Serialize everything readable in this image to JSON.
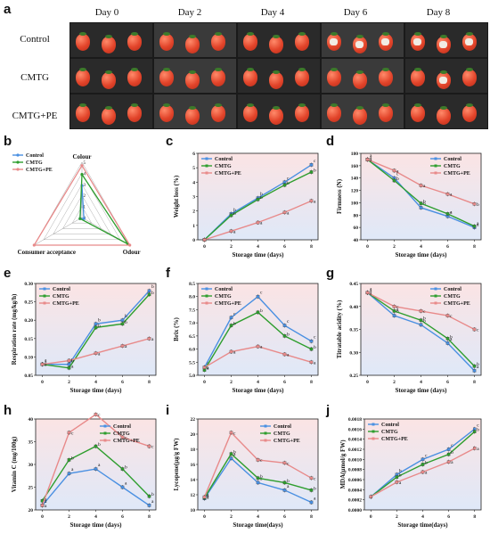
{
  "figure": {
    "panel_letters": [
      "a",
      "b",
      "c",
      "d",
      "e",
      "f",
      "g",
      "h",
      "i",
      "j"
    ]
  },
  "photo_panel": {
    "days": [
      "Day 0",
      "Day 2",
      "Day 4",
      "Day 6",
      "Day 8"
    ],
    "treatments": [
      "Control",
      "CMTG",
      "CMTG+PE"
    ],
    "tile_color": "#2c2c2c"
  },
  "colors": {
    "control": "#4a90e2",
    "cmtg": "#2e9e2e",
    "cmtgpe": "#e88a8a"
  },
  "chart_data": [
    {
      "id": "b",
      "type": "radar",
      "axes": [
        "Colour",
        "Odour",
        "Consumer acceptance"
      ],
      "rlim": [
        0,
        5
      ],
      "tick_labels": [
        "0",
        "1",
        "2",
        "3",
        "4",
        "5"
      ],
      "legend": [
        "Control",
        "CMTG",
        "CMTG+PE"
      ],
      "series": [
        {
          "name": "Control",
          "values": [
            2.9,
            0.2,
            0.2
          ],
          "color": "#4a90e2"
        },
        {
          "name": "CMTG",
          "values": [
            3.9,
            4.8,
            0.2
          ],
          "color": "#2e9e2e"
        },
        {
          "name": "CMTG+PE",
          "values": [
            4.7,
            5.0,
            5.0
          ],
          "color": "#e88a8a"
        }
      ]
    },
    {
      "id": "c",
      "type": "line",
      "xlabel": "Storage time (days)",
      "ylabel": "Weight loss (%)",
      "x": [
        0,
        2,
        4,
        6,
        8
      ],
      "xticks": [
        "0",
        "2",
        "4",
        "6",
        "8"
      ],
      "ylim": [
        0,
        6
      ],
      "yticks": [
        "0",
        "1",
        "2",
        "3",
        "4",
        "5",
        "6"
      ],
      "series": [
        {
          "name": "Control",
          "values": [
            0,
            1.8,
            2.9,
            4.0,
            5.2
          ],
          "color": "#4a90e2",
          "letters": [
            "",
            "b",
            "b",
            "c",
            "c"
          ]
        },
        {
          "name": "CMTG",
          "values": [
            0,
            1.7,
            2.8,
            3.8,
            4.7
          ],
          "color": "#2e9e2e",
          "letters": [
            "",
            "b",
            "b",
            "b",
            "b"
          ]
        },
        {
          "name": "CMTG+PE",
          "values": [
            0,
            0.6,
            1.2,
            1.9,
            2.7
          ],
          "color": "#e88a8a",
          "letters": [
            "",
            "a",
            "a",
            "a",
            "a"
          ]
        }
      ]
    },
    {
      "id": "d",
      "type": "line",
      "xlabel": "Storage time (days)",
      "ylabel": "Firmness (N)",
      "x": [
        0,
        2,
        4,
        6,
        8
      ],
      "xticks": [
        "0",
        "2",
        "4",
        "6",
        "8"
      ],
      "ylim": [
        40,
        180
      ],
      "yticks": [
        "40",
        "60",
        "80",
        "100",
        "120",
        "140",
        "160",
        "180"
      ],
      "series": [
        {
          "name": "Control",
          "values": [
            170,
            140,
            92,
            78,
            60
          ],
          "color": "#4a90e2",
          "letters": [
            "a",
            "c",
            "b",
            "a",
            "a"
          ]
        },
        {
          "name": "CMTG",
          "values": [
            170,
            136,
            99,
            82,
            62
          ],
          "color": "#2e9e2e",
          "letters": [
            "a",
            "b",
            "b",
            "a",
            "a"
          ]
        },
        {
          "name": "CMTG+PE",
          "values": [
            170,
            152,
            128,
            114,
            98
          ],
          "color": "#e88a8a",
          "letters": [
            "a",
            "a",
            "a",
            "a",
            "b"
          ]
        }
      ]
    },
    {
      "id": "e",
      "type": "line",
      "xlabel": "Storage time (days)",
      "ylabel": "Respiration rate (mg/kg/h)",
      "x": [
        0,
        2,
        4,
        6,
        8
      ],
      "xticks": [
        "0",
        "2",
        "4",
        "6",
        "8"
      ],
      "ylim": [
        0.05,
        0.3
      ],
      "yticks": [
        "0.05",
        "0.10",
        "0.15",
        "0.20",
        "0.25",
        "0.30"
      ],
      "series": [
        {
          "name": "Control",
          "values": [
            0.08,
            0.08,
            0.19,
            0.2,
            0.28
          ],
          "color": "#4a90e2",
          "letters": [
            "a",
            "b",
            "b",
            "b",
            "b"
          ]
        },
        {
          "name": "CMTG",
          "values": [
            0.08,
            0.07,
            0.18,
            0.19,
            0.27
          ],
          "color": "#2e9e2e",
          "letters": [
            "a",
            "a",
            "b",
            "b",
            "b"
          ]
        },
        {
          "name": "CMTG+PE",
          "values": [
            0.08,
            0.09,
            0.11,
            0.13,
            0.15
          ],
          "color": "#e88a8a",
          "letters": [
            "a",
            "b",
            "a",
            "a",
            "a"
          ]
        }
      ]
    },
    {
      "id": "f",
      "type": "line",
      "xlabel": "Storage time (days)",
      "ylabel": "Brix (%)",
      "x": [
        0,
        2,
        4,
        6,
        8
      ],
      "xticks": [
        "0",
        "2",
        "4",
        "6",
        "8"
      ],
      "ylim": [
        5.0,
        8.5
      ],
      "yticks": [
        "5.0",
        "5.5",
        "6.0",
        "6.5",
        "7.0",
        "7.5",
        "8.0",
        "8.5"
      ],
      "series": [
        {
          "name": "Control",
          "values": [
            5.3,
            7.2,
            8.0,
            6.9,
            6.3
          ],
          "color": "#4a90e2",
          "letters": [
            "a",
            "c",
            "c",
            "c",
            "c"
          ]
        },
        {
          "name": "CMTG",
          "values": [
            5.2,
            6.9,
            7.4,
            6.5,
            6.0
          ],
          "color": "#2e9e2e",
          "letters": [
            "a",
            "b",
            "b",
            "b",
            "b"
          ]
        },
        {
          "name": "CMTG+PE",
          "values": [
            5.3,
            5.9,
            6.1,
            5.8,
            5.5
          ],
          "color": "#e88a8a",
          "letters": [
            "a",
            "a",
            "a",
            "a",
            "a"
          ]
        }
      ]
    },
    {
      "id": "g",
      "type": "line",
      "xlabel": "Storage time (days)",
      "ylabel": "Titratable acidity (%)",
      "x": [
        0,
        2,
        4,
        6,
        8
      ],
      "xticks": [
        "0",
        "2",
        "4",
        "6",
        "8"
      ],
      "ylim": [
        0.25,
        0.45
      ],
      "yticks": [
        "0.25",
        "0.30",
        "0.35",
        "0.40",
        "0.45"
      ],
      "series": [
        {
          "name": "Control",
          "values": [
            0.43,
            0.38,
            0.36,
            0.32,
            0.26
          ],
          "color": "#4a90e2",
          "letters": [
            "a",
            "b",
            "b",
            "a",
            "a"
          ]
        },
        {
          "name": "CMTG",
          "values": [
            0.43,
            0.39,
            0.37,
            0.33,
            0.27
          ],
          "color": "#2e9e2e",
          "letters": [
            "a",
            "a",
            "b",
            "b",
            "b"
          ]
        },
        {
          "name": "CMTG+PE",
          "values": [
            0.43,
            0.4,
            0.39,
            0.38,
            0.35
          ],
          "color": "#e88a8a",
          "letters": [
            "a",
            "c",
            "c",
            "c",
            "c"
          ]
        }
      ]
    },
    {
      "id": "h",
      "type": "line",
      "xlabel": "Storage time (days)",
      "ylabel": "Vitamin C (mg/100g)",
      "x": [
        0,
        2,
        4,
        6,
        8
      ],
      "xticks": [
        "0",
        "2",
        "4",
        "6",
        "8"
      ],
      "ylim": [
        20,
        40
      ],
      "yticks": [
        "20",
        "25",
        "30",
        "35",
        "40"
      ],
      "series": [
        {
          "name": "Control",
          "values": [
            21,
            28,
            29,
            25,
            21
          ],
          "color": "#4a90e2",
          "letters": [
            "a",
            "a",
            "a",
            "a",
            "a"
          ]
        },
        {
          "name": "CMTG",
          "values": [
            22,
            31,
            34,
            29,
            23
          ],
          "color": "#2e9e2e",
          "letters": [
            "a",
            "b",
            "b",
            "b",
            "b"
          ]
        },
        {
          "name": "CMTG+PE",
          "values": [
            21,
            37,
            41,
            36,
            34
          ],
          "color": "#e88a8a",
          "letters": [
            "a",
            "c",
            "c",
            "c",
            "c"
          ]
        }
      ]
    },
    {
      "id": "i",
      "type": "line",
      "xlabel": "Storage time(days)",
      "ylabel": "Lycopene(μg/g FW)",
      "x": [
        0,
        2,
        4,
        6,
        8
      ],
      "xticks": [
        "0",
        "2",
        "4",
        "6",
        "8"
      ],
      "ylim": [
        10,
        22
      ],
      "yticks": [
        "10",
        "12",
        "14",
        "16",
        "18",
        "20",
        "22"
      ],
      "series": [
        {
          "name": "Control",
          "values": [
            11.5,
            16.8,
            13.6,
            12.6,
            11.0
          ],
          "color": "#4a90e2",
          "letters": [
            "a",
            "a",
            "a",
            "a",
            "a"
          ]
        },
        {
          "name": "CMTG",
          "values": [
            11.6,
            17.4,
            14.2,
            13.6,
            12.6
          ],
          "color": "#2e9e2e",
          "letters": [
            "a",
            "b",
            "b",
            "b",
            "b"
          ]
        },
        {
          "name": "CMTG+PE",
          "values": [
            11.7,
            20.2,
            16.6,
            16.2,
            14.2
          ],
          "color": "#e88a8a",
          "letters": [
            "a",
            "c",
            "c",
            "c",
            "c"
          ]
        }
      ]
    },
    {
      "id": "j",
      "type": "line",
      "xlabel": "Storage time(days)",
      "ylabel": "MDA(μmol/g FW)",
      "x": [
        0,
        2,
        4,
        6,
        8
      ],
      "xticks": [
        "0",
        "2",
        "4",
        "6",
        "8"
      ],
      "ylim": [
        0.0,
        0.0018
      ],
      "yticks": [
        "0.0000",
        "0.0002",
        "0.0004",
        "0.0006",
        "0.0008",
        "0.0010",
        "0.0012",
        "0.0014",
        "0.0016",
        "0.0018"
      ],
      "series": [
        {
          "name": "Control",
          "values": [
            0.00026,
            0.0007,
            0.001,
            0.0012,
            0.0016
          ],
          "color": "#4a90e2",
          "letters": [
            "",
            "b",
            "c",
            "c",
            "c"
          ]
        },
        {
          "name": "CMTG",
          "values": [
            0.00026,
            0.00065,
            0.0009,
            0.0011,
            0.00155
          ],
          "color": "#2e9e2e",
          "letters": [
            "",
            "b",
            "b",
            "b",
            "b"
          ]
        },
        {
          "name": "CMTG+PE",
          "values": [
            0.00026,
            0.00055,
            0.00075,
            0.00095,
            0.00122
          ],
          "color": "#e88a8a",
          "letters": [
            "",
            "a",
            "a",
            "a",
            "a"
          ]
        }
      ]
    }
  ]
}
